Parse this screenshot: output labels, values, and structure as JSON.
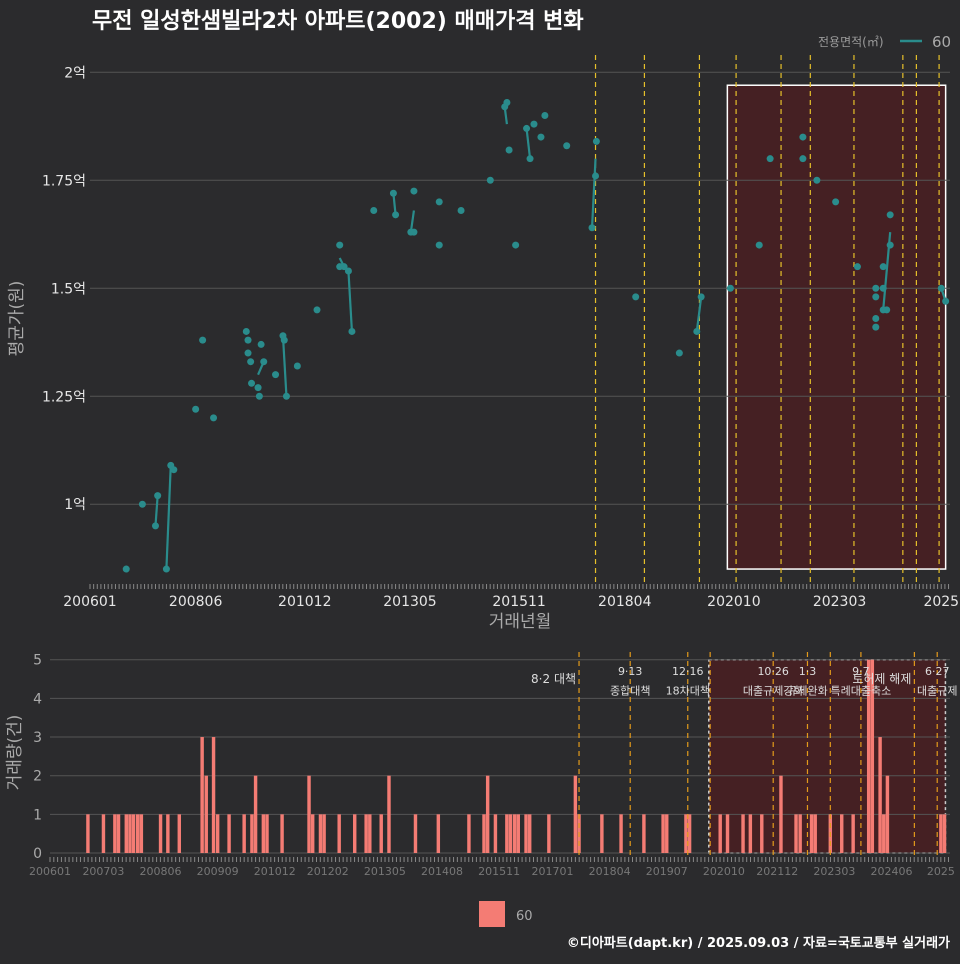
{
  "title": "무전 일성한샘빌라2차 아파트(2002) 매매가격 변화",
  "footer": "©디아파트(dapt.kr) / 2025.09.03 / 자료=국토교통부 실거래가",
  "colors": {
    "bg": "#2b2b2d",
    "line": "#2a8c8c",
    "bar": "#f47c74",
    "highlight": "#4a1f22",
    "grid": "#555555",
    "vline_yellow": "#e6c02a",
    "vline_orange": "#e39a1b"
  },
  "chart_data": [
    {
      "type": "line",
      "title": "무전 일성한샘빌라2차 아파트(2002) 매매가격 변화",
      "xlabel": "거래년월",
      "ylabel": "평균가(원)",
      "legend_title": "전용면적(㎡)",
      "legend_entries": [
        "60"
      ],
      "xlim": [
        2006.0,
        2025.7
      ],
      "ylim": [
        0.82,
        2.04
      ],
      "x_ticks": [
        {
          "label": "200601",
          "x": 2006.0
        },
        {
          "label": "200806",
          "x": 2008.42
        },
        {
          "label": "201012",
          "x": 2010.92
        },
        {
          "label": "201305",
          "x": 2013.33
        },
        {
          "label": "201511",
          "x": 2015.83
        },
        {
          "label": "201804",
          "x": 2018.25
        },
        {
          "label": "202010",
          "x": 2020.75
        },
        {
          "label": "202303",
          "x": 2023.17
        },
        {
          "label": "2025",
          "x": 2025.5
        }
      ],
      "y_ticks": [
        {
          "label": "1억",
          "y": 1.0
        },
        {
          "label": "1.25억",
          "y": 1.25
        },
        {
          "label": "1.5억",
          "y": 1.5
        },
        {
          "label": "1.75억",
          "y": 1.75
        },
        {
          "label": "2억",
          "y": 2.0
        }
      ],
      "highlight_range": {
        "x": [
          2020.6,
          2025.6
        ],
        "y": [
          0.85,
          1.97
        ]
      },
      "vlines": [
        2017.58,
        2018.7,
        2019.96,
        2020.8,
        2021.83,
        2022.5,
        2023.5,
        2024.62,
        2024.93,
        2025.45
      ],
      "series": [
        {
          "name": "60",
          "points": [
            [
              2006.83,
              0.85
            ],
            [
              2007.2,
              1.0
            ],
            [
              2007.5,
              0.95
            ],
            [
              2007.55,
              1.02
            ],
            [
              2007.75,
              0.85
            ],
            [
              2007.85,
              1.09
            ],
            [
              2007.92,
              1.08
            ],
            [
              2008.42,
              1.22
            ],
            [
              2008.58,
              1.38
            ],
            [
              2008.83,
              1.2
            ],
            [
              2009.58,
              1.4
            ],
            [
              2009.62,
              1.38
            ],
            [
              2009.62,
              1.35
            ],
            [
              2009.68,
              1.33
            ],
            [
              2009.7,
              1.28
            ],
            [
              2009.85,
              1.27
            ],
            [
              2009.88,
              1.25
            ],
            [
              2009.92,
              1.37
            ],
            [
              2009.98,
              1.33
            ],
            [
              2010.25,
              1.3
            ],
            [
              2010.42,
              1.39
            ],
            [
              2010.45,
              1.38
            ],
            [
              2010.5,
              1.25
            ],
            [
              2010.75,
              1.32
            ],
            [
              2011.2,
              1.45
            ],
            [
              2011.72,
              1.6
            ],
            [
              2011.72,
              1.55
            ],
            [
              2011.82,
              1.55
            ],
            [
              2011.92,
              1.54
            ],
            [
              2012.0,
              1.4
            ],
            [
              2012.5,
              1.68
            ],
            [
              2012.95,
              1.72
            ],
            [
              2013.0,
              1.67
            ],
            [
              2013.35,
              1.63
            ],
            [
              2013.42,
              1.63
            ],
            [
              2013.42,
              1.725
            ],
            [
              2014.0,
              1.7
            ],
            [
              2014.0,
              1.6
            ],
            [
              2014.5,
              1.68
            ],
            [
              2015.17,
              1.75
            ],
            [
              2015.5,
              1.92
            ],
            [
              2015.55,
              1.93
            ],
            [
              2015.6,
              1.82
            ],
            [
              2015.75,
              1.6
            ],
            [
              2016.0,
              1.87
            ],
            [
              2016.08,
              1.8
            ],
            [
              2016.17,
              1.88
            ],
            [
              2016.33,
              1.85
            ],
            [
              2016.42,
              1.9
            ],
            [
              2016.92,
              1.83
            ],
            [
              2017.5,
              1.64
            ],
            [
              2017.58,
              1.76
            ],
            [
              2017.6,
              1.84
            ],
            [
              2018.5,
              1.48
            ],
            [
              2019.5,
              1.35
            ],
            [
              2019.9,
              1.4
            ],
            [
              2020.0,
              1.48
            ],
            [
              2020.67,
              1.5
            ],
            [
              2021.33,
              1.6
            ],
            [
              2021.58,
              1.8
            ],
            [
              2022.33,
              1.85
            ],
            [
              2022.33,
              1.8
            ],
            [
              2022.65,
              1.75
            ],
            [
              2023.08,
              1.7
            ],
            [
              2023.58,
              1.55
            ],
            [
              2024.0,
              1.5
            ],
            [
              2024.0,
              1.48
            ],
            [
              2024.0,
              1.43
            ],
            [
              2024.0,
              1.41
            ],
            [
              2024.17,
              1.55
            ],
            [
              2024.17,
              1.5
            ],
            [
              2024.17,
              1.45
            ],
            [
              2024.25,
              1.45
            ],
            [
              2024.33,
              1.6
            ],
            [
              2024.33,
              1.67
            ],
            [
              2025.5,
              1.5
            ],
            [
              2025.6,
              1.47
            ]
          ],
          "segments": [
            [
              [
                2007.75,
                0.85
              ],
              [
                2007.85,
                1.09
              ]
            ],
            [
              [
                2007.5,
                0.95
              ],
              [
                2007.55,
                1.02
              ]
            ],
            [
              [
                2009.85,
                1.3
              ],
              [
                2009.98,
                1.33
              ]
            ],
            [
              [
                2010.42,
                1.39
              ],
              [
                2010.5,
                1.25
              ]
            ],
            [
              [
                2011.72,
                1.57
              ],
              [
                2011.82,
                1.55
              ]
            ],
            [
              [
                2011.92,
                1.54
              ],
              [
                2012.0,
                1.4
              ]
            ],
            [
              [
                2012.95,
                1.72
              ],
              [
                2013.0,
                1.67
              ]
            ],
            [
              [
                2013.35,
                1.63
              ],
              [
                2013.42,
                1.68
              ]
            ],
            [
              [
                2015.5,
                1.92
              ],
              [
                2015.55,
                1.88
              ]
            ],
            [
              [
                2016.0,
                1.87
              ],
              [
                2016.08,
                1.8
              ]
            ],
            [
              [
                2017.5,
                1.64
              ],
              [
                2017.58,
                1.8
              ]
            ],
            [
              [
                2019.9,
                1.4
              ],
              [
                2020.0,
                1.48
              ]
            ],
            [
              [
                2024.17,
                1.45
              ],
              [
                2024.33,
                1.63
              ]
            ],
            [
              [
                2025.5,
                1.5
              ],
              [
                2025.6,
                1.47
              ]
            ]
          ]
        }
      ]
    },
    {
      "type": "bar",
      "xlabel": "",
      "ylabel": "거래량(건)",
      "legend_entries": [
        "60"
      ],
      "xlim": [
        2006.0,
        2025.7
      ],
      "ylim": [
        0,
        5.2
      ],
      "y_ticks": [
        0,
        1,
        2,
        3,
        4,
        5
      ],
      "x_ticks": [
        {
          "label": "200601",
          "x": 2006.0
        },
        {
          "label": "200703",
          "x": 2007.17
        },
        {
          "label": "200806",
          "x": 2008.42
        },
        {
          "label": "200909",
          "x": 2009.67
        },
        {
          "label": "201012",
          "x": 2010.92
        },
        {
          "label": "201202",
          "x": 2012.08
        },
        {
          "label": "201305",
          "x": 2013.33
        },
        {
          "label": "201408",
          "x": 2014.58
        },
        {
          "label": "201511",
          "x": 2015.83
        },
        {
          "label": "201701",
          "x": 2017.0
        },
        {
          "label": "201804",
          "x": 2018.25
        },
        {
          "label": "201907",
          "x": 2019.5
        },
        {
          "label": "202010",
          "x": 2020.75
        },
        {
          "label": "202112",
          "x": 2021.92
        },
        {
          "label": "202303",
          "x": 2023.17
        },
        {
          "label": "202406",
          "x": 2024.42
        },
        {
          "label": "2025",
          "x": 2025.5
        }
      ],
      "highlight_range": {
        "x": [
          2020.42,
          2025.6
        ],
        "y": [
          0,
          5
        ]
      },
      "vlines": [
        2017.58,
        2018.7,
        2019.96,
        2020.45,
        2021.83,
        2022.58,
        2023.08,
        2023.75,
        2024.92,
        2025.42
      ],
      "annotations": [
        {
          "x": 2017.58,
          "lines": [
            "8·2 대책"
          ]
        },
        {
          "x": 2018.7,
          "lines": [
            "9·13",
            "종합대책"
          ]
        },
        {
          "x": 2019.96,
          "lines": [
            "12·16",
            "18차대책"
          ]
        },
        {
          "x": 2021.83,
          "lines": [
            "10·26",
            "대출규제강화"
          ]
        },
        {
          "x": 2022.58,
          "lines": [
            "1·3",
            "규제완화"
          ]
        },
        {
          "x": 2023.75,
          "lines": [
            "9·7",
            "특례대출축소"
          ]
        },
        {
          "x": 2024.92,
          "lines": [
            "토허제 해제"
          ]
        },
        {
          "x": 2025.42,
          "lines": [
            "6·27",
            "대출규제"
          ]
        }
      ],
      "bars": [
        [
          2006.83,
          1
        ],
        [
          2007.17,
          1
        ],
        [
          2007.42,
          1
        ],
        [
          2007.5,
          1
        ],
        [
          2007.67,
          1
        ],
        [
          2007.75,
          1
        ],
        [
          2007.83,
          1
        ],
        [
          2007.92,
          1
        ],
        [
          2008.0,
          1
        ],
        [
          2008.42,
          1
        ],
        [
          2008.58,
          1
        ],
        [
          2008.83,
          1
        ],
        [
          2009.33,
          3
        ],
        [
          2009.42,
          2
        ],
        [
          2009.58,
          3
        ],
        [
          2009.67,
          1
        ],
        [
          2009.92,
          1
        ],
        [
          2010.25,
          1
        ],
        [
          2010.42,
          1
        ],
        [
          2010.5,
          2
        ],
        [
          2010.67,
          1
        ],
        [
          2010.75,
          1
        ],
        [
          2011.08,
          1
        ],
        [
          2011.67,
          2
        ],
        [
          2011.75,
          1
        ],
        [
          2011.92,
          1
        ],
        [
          2012.0,
          1
        ],
        [
          2012.33,
          1
        ],
        [
          2012.67,
          1
        ],
        [
          2012.92,
          1
        ],
        [
          2013.0,
          1
        ],
        [
          2013.25,
          1
        ],
        [
          2013.42,
          2
        ],
        [
          2014.0,
          1
        ],
        [
          2014.5,
          1
        ],
        [
          2015.17,
          1
        ],
        [
          2015.5,
          1
        ],
        [
          2015.58,
          2
        ],
        [
          2015.75,
          1
        ],
        [
          2016.0,
          1
        ],
        [
          2016.08,
          1
        ],
        [
          2016.17,
          1
        ],
        [
          2016.25,
          1
        ],
        [
          2016.42,
          1
        ],
        [
          2016.5,
          1
        ],
        [
          2016.92,
          1
        ],
        [
          2017.5,
          2
        ],
        [
          2017.58,
          1
        ],
        [
          2018.08,
          1
        ],
        [
          2018.5,
          1
        ],
        [
          2019.0,
          1
        ],
        [
          2019.42,
          1
        ],
        [
          2019.5,
          1
        ],
        [
          2019.92,
          1
        ],
        [
          2020.0,
          1
        ],
        [
          2020.67,
          1
        ],
        [
          2020.83,
          1
        ],
        [
          2021.17,
          1
        ],
        [
          2021.33,
          1
        ],
        [
          2021.58,
          1
        ],
        [
          2022.0,
          2
        ],
        [
          2022.33,
          1
        ],
        [
          2022.42,
          1
        ],
        [
          2022.67,
          1
        ],
        [
          2022.75,
          1
        ],
        [
          2023.08,
          1
        ],
        [
          2023.33,
          1
        ],
        [
          2023.58,
          1
        ],
        [
          2023.92,
          5
        ],
        [
          2024.0,
          5
        ],
        [
          2024.17,
          3
        ],
        [
          2024.25,
          1
        ],
        [
          2024.33,
          2
        ],
        [
          2025.5,
          1
        ],
        [
          2025.58,
          1
        ]
      ]
    }
  ]
}
